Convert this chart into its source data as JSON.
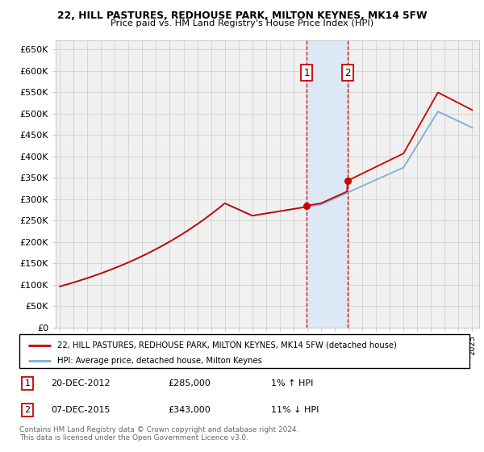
{
  "title1": "22, HILL PASTURES, REDHOUSE PARK, MILTON KEYNES, MK14 5FW",
  "title2": "Price paid vs. HM Land Registry's House Price Index (HPI)",
  "ylim": [
    0,
    670000
  ],
  "yticks": [
    0,
    50000,
    100000,
    150000,
    200000,
    250000,
    300000,
    350000,
    400000,
    450000,
    500000,
    550000,
    600000,
    650000
  ],
  "ytick_labels": [
    "£0",
    "£50K",
    "£100K",
    "£150K",
    "£200K",
    "£250K",
    "£300K",
    "£350K",
    "£400K",
    "£450K",
    "£500K",
    "£550K",
    "£600K",
    "£650K"
  ],
  "sale1_date": 2012.96,
  "sale1_price": 285000,
  "sale2_date": 2015.92,
  "sale2_price": 343000,
  "legend_house": "22, HILL PASTURES, REDHOUSE PARK, MILTON KEYNES, MK14 5FW (detached house)",
  "legend_hpi": "HPI: Average price, detached house, Milton Keynes",
  "house_color": "#cc0000",
  "hpi_color": "#7aafd4",
  "shade_color": "#dce9f5",
  "grid_color": "#cccccc",
  "bg_color": "#f0f0f0",
  "footnote": "Contains HM Land Registry data © Crown copyright and database right 2024.\nThis data is licensed under the Open Government Licence v3.0."
}
